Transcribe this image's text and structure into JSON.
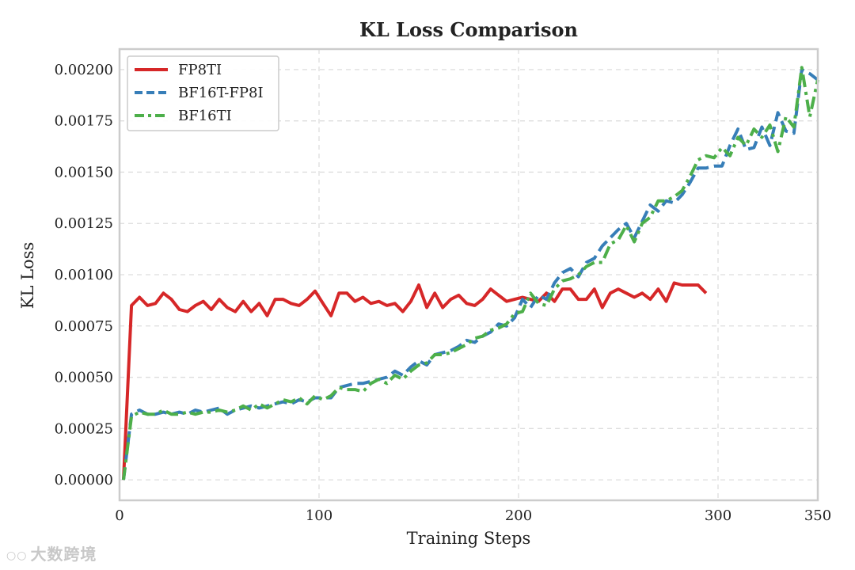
{
  "watermark": {
    "icon": "wechat-logo-icon",
    "text": "大数跨境"
  },
  "chart_data": {
    "type": "line",
    "title": "KL Loss Comparison",
    "xlabel": "Training Steps",
    "ylabel": "KL Loss",
    "xlim": [
      0,
      350
    ],
    "ylim": [
      -0.0001,
      0.0021
    ],
    "xticks": [
      0,
      100,
      200,
      300,
      350
    ],
    "yticks": [
      0.0,
      0.00025,
      0.0005,
      0.00075,
      0.001,
      0.00125,
      0.0015,
      0.00175,
      0.002
    ],
    "ytick_labels": [
      "0.00000",
      "0.00025",
      "0.00050",
      "0.00075",
      "0.00100",
      "0.00125",
      "0.00150",
      "0.00175",
      "0.00200"
    ],
    "grid": true,
    "legend_position": "top-left",
    "series": [
      {
        "name": "FP8TI",
        "color": "#d62728",
        "dash": "solid",
        "x": [
          2,
          6,
          10,
          14,
          18,
          22,
          26,
          30,
          34,
          38,
          42,
          46,
          50,
          54,
          58,
          62,
          66,
          70,
          74,
          78,
          82,
          86,
          90,
          94,
          98,
          102,
          106,
          110,
          114,
          118,
          122,
          126,
          130,
          134,
          138,
          142,
          146,
          150,
          154,
          158,
          162,
          166,
          170,
          174,
          178,
          182,
          186,
          190,
          194,
          198,
          202,
          206,
          210,
          214,
          218,
          222,
          226,
          230,
          234,
          238,
          242,
          246,
          250,
          254,
          258,
          262,
          266,
          270,
          274,
          278,
          282,
          286,
          290,
          294
        ],
        "y": [
          0.0,
          0.00085,
          0.00089,
          0.00085,
          0.00086,
          0.00091,
          0.00088,
          0.00083,
          0.00082,
          0.00085,
          0.00087,
          0.00083,
          0.00088,
          0.00084,
          0.00082,
          0.00087,
          0.00082,
          0.00086,
          0.0008,
          0.00088,
          0.00088,
          0.00086,
          0.00085,
          0.00088,
          0.00092,
          0.00086,
          0.0008,
          0.00091,
          0.00091,
          0.00087,
          0.00089,
          0.00086,
          0.00087,
          0.00085,
          0.00086,
          0.00082,
          0.00087,
          0.00095,
          0.00084,
          0.00091,
          0.00084,
          0.00088,
          0.0009,
          0.00086,
          0.00085,
          0.00088,
          0.00093,
          0.0009,
          0.00087,
          0.00088,
          0.00089,
          0.00088,
          0.00087,
          0.00091,
          0.00087,
          0.00093,
          0.00093,
          0.00088,
          0.00088,
          0.00093,
          0.00084,
          0.00091,
          0.00093,
          0.00091,
          0.00089,
          0.00091,
          0.00088,
          0.00093,
          0.00087,
          0.00096,
          0.00095,
          0.00095,
          0.00095,
          0.00091
        ]
      },
      {
        "name": "BF16T-FP8I",
        "color": "#377eb8",
        "dash": "dashed",
        "x": [
          2,
          6,
          10,
          14,
          18,
          22,
          26,
          30,
          34,
          38,
          42,
          46,
          50,
          54,
          58,
          62,
          66,
          70,
          74,
          78,
          82,
          86,
          90,
          94,
          98,
          102,
          106,
          110,
          114,
          118,
          122,
          126,
          130,
          134,
          138,
          142,
          146,
          150,
          154,
          158,
          162,
          166,
          170,
          174,
          178,
          182,
          186,
          190,
          194,
          198,
          202,
          206,
          210,
          214,
          218,
          222,
          226,
          230,
          234,
          238,
          242,
          246,
          250,
          254,
          258,
          262,
          266,
          270,
          274,
          278,
          282,
          286,
          290,
          294,
          298,
          302,
          306,
          310,
          314,
          318,
          322,
          326,
          330,
          334,
          338,
          342,
          346,
          350
        ],
        "y": [
          0.0,
          0.00032,
          0.00034,
          0.00032,
          0.00032,
          0.00033,
          0.00032,
          0.00033,
          0.00032,
          0.00034,
          0.00033,
          0.00034,
          0.00035,
          0.00032,
          0.00034,
          0.00035,
          0.00036,
          0.00035,
          0.00036,
          0.00037,
          0.00038,
          0.00037,
          0.00039,
          0.00038,
          0.0004,
          0.0004,
          0.0004,
          0.00045,
          0.00046,
          0.00047,
          0.00047,
          0.00048,
          0.00049,
          0.0005,
          0.00053,
          0.00051,
          0.00055,
          0.00058,
          0.00056,
          0.00061,
          0.00062,
          0.00063,
          0.00065,
          0.00068,
          0.00067,
          0.0007,
          0.00072,
          0.00076,
          0.00075,
          0.00079,
          0.00088,
          0.00084,
          0.0009,
          0.00088,
          0.00096,
          0.00101,
          0.00103,
          0.00099,
          0.00106,
          0.00108,
          0.00114,
          0.00118,
          0.00122,
          0.00125,
          0.00118,
          0.00126,
          0.00134,
          0.00131,
          0.00136,
          0.00135,
          0.00139,
          0.00145,
          0.00152,
          0.00152,
          0.00153,
          0.00153,
          0.00163,
          0.00171,
          0.00161,
          0.00162,
          0.00172,
          0.00163,
          0.00179,
          0.0017,
          0.00169,
          0.002,
          0.00198,
          0.00195
        ]
      },
      {
        "name": "BF16TI",
        "color": "#4daf4a",
        "dash": "dashdot",
        "x": [
          2,
          6,
          10,
          14,
          18,
          22,
          26,
          30,
          34,
          38,
          42,
          46,
          50,
          54,
          58,
          62,
          66,
          70,
          74,
          78,
          82,
          86,
          90,
          94,
          98,
          102,
          106,
          110,
          114,
          118,
          122,
          126,
          130,
          134,
          138,
          142,
          146,
          150,
          154,
          158,
          162,
          166,
          170,
          174,
          178,
          182,
          186,
          190,
          194,
          198,
          202,
          206,
          210,
          214,
          218,
          222,
          226,
          230,
          234,
          238,
          242,
          246,
          250,
          254,
          258,
          262,
          266,
          270,
          274,
          278,
          282,
          286,
          290,
          294,
          298,
          302,
          306,
          310,
          314,
          318,
          322,
          326,
          330,
          334,
          338,
          342,
          346,
          350
        ],
        "y": [
          0.0,
          0.00031,
          0.00033,
          0.00032,
          0.00032,
          0.00034,
          0.00032,
          0.00032,
          0.00033,
          0.00032,
          0.00033,
          0.00033,
          0.00034,
          0.00033,
          0.00034,
          0.00036,
          0.00034,
          0.00037,
          0.00035,
          0.00037,
          0.00039,
          0.00038,
          0.0004,
          0.00037,
          0.00041,
          0.00039,
          0.00041,
          0.00045,
          0.00044,
          0.00044,
          0.00043,
          0.00047,
          0.00049,
          0.00047,
          0.00051,
          0.00049,
          0.00053,
          0.00056,
          0.00057,
          0.00061,
          0.00061,
          0.00062,
          0.00064,
          0.00066,
          0.00069,
          0.0007,
          0.00073,
          0.00074,
          0.00076,
          0.00081,
          0.00082,
          0.00091,
          0.00086,
          0.00085,
          0.00093,
          0.00097,
          0.00098,
          0.001,
          0.00104,
          0.00106,
          0.00106,
          0.00115,
          0.00117,
          0.00124,
          0.00116,
          0.00125,
          0.00128,
          0.00136,
          0.00136,
          0.00138,
          0.00141,
          0.00148,
          0.00156,
          0.00158,
          0.00157,
          0.00162,
          0.00158,
          0.00167,
          0.00163,
          0.00171,
          0.00167,
          0.00173,
          0.0016,
          0.00177,
          0.00172,
          0.00201,
          0.00177,
          0.00195
        ]
      }
    ]
  }
}
